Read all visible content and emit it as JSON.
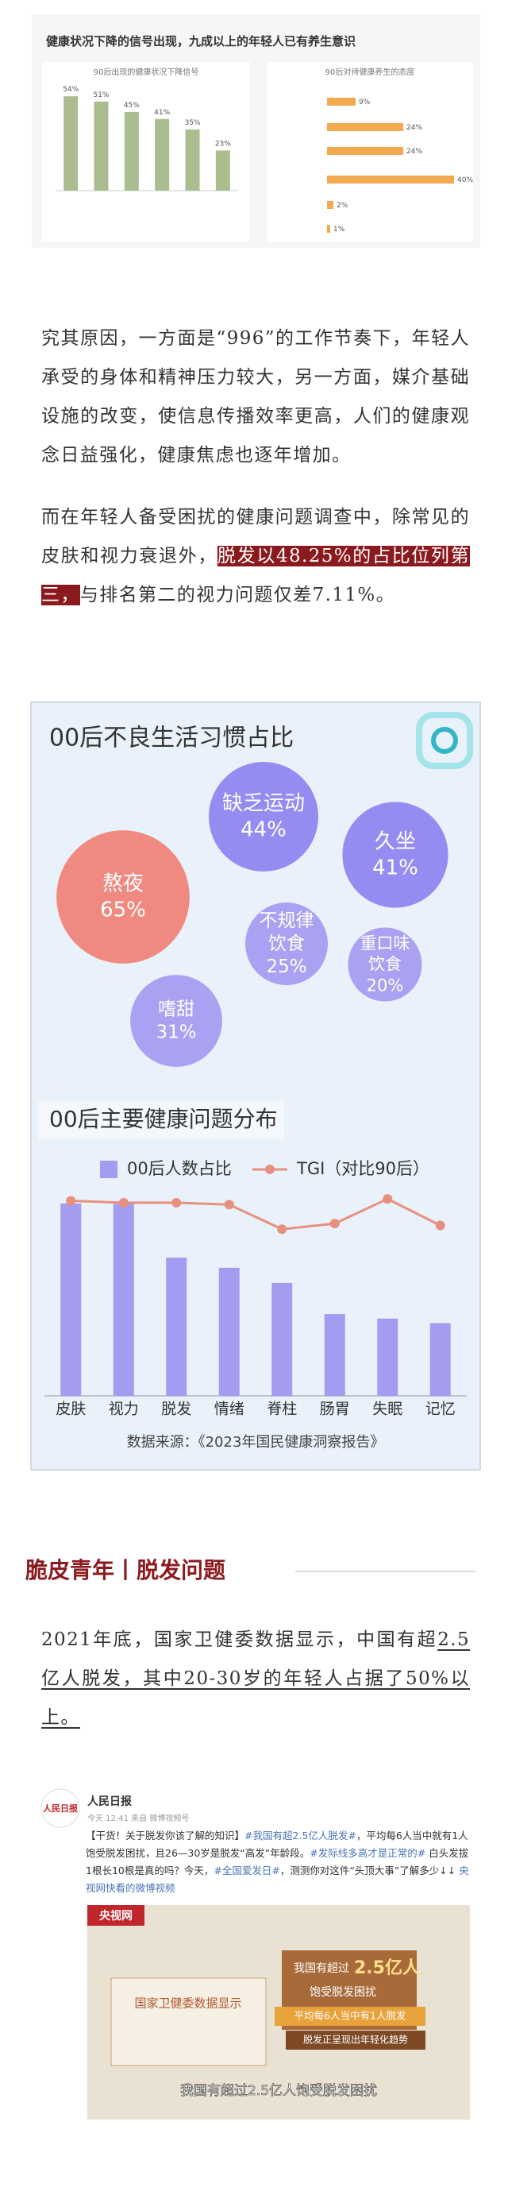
{
  "top_image_title": "健康状况下降的信号出现，九成以上的年轻人已有养生意识",
  "chart_data": [
    {
      "type": "bar",
      "title": "90后出现的健康状况下降信号",
      "categories": [
        null,
        null,
        null,
        null,
        null,
        null
      ],
      "values": [
        54,
        51,
        45,
        41,
        35,
        23
      ],
      "value_labels": [
        "54%",
        "51%",
        "45%",
        "41%",
        "35%",
        "23%"
      ],
      "color": "#a9bd8e",
      "ylim": [
        0,
        60
      ]
    },
    {
      "type": "hbar",
      "title": "90后对待健康养生的态度",
      "categories": [
        null,
        null,
        null,
        null,
        null,
        null
      ],
      "values": [
        9,
        24,
        24,
        40,
        2,
        1
      ],
      "value_labels": [
        "9%",
        "24%",
        "24%",
        "40%",
        "2%",
        "1%"
      ],
      "color": "#f2a950",
      "xlim": [
        0,
        45
      ]
    },
    {
      "type": "bubble",
      "title": "00后不良生活习惯占比",
      "categories": [
        "熬夜",
        "缺乏运动",
        "久坐",
        "不规律饮食",
        "重口味饮食",
        "嗜甜"
      ],
      "values": [
        65,
        44,
        41,
        25,
        20,
        31
      ],
      "value_labels": [
        "65%",
        "44%",
        "41%",
        "25%",
        "20%",
        "31%"
      ],
      "colors": [
        "#f08a80",
        "#948cf0",
        "#948cf0",
        "#a9a2f2",
        "#a9a2f2",
        "#a9a2f2"
      ]
    },
    {
      "type": "bar",
      "title": "00后主要健康问题分布",
      "categories": [
        "皮肤",
        "视力",
        "脱发",
        "情绪",
        "脊柱",
        "肠胃",
        "失眠",
        "记忆"
      ],
      "series": [
        {
          "name": "00后人数占比",
          "color": "#a49cf0",
          "values": [
            55.4,
            55.36,
            48.25,
            46.9,
            44.9,
            40.8,
            40.2,
            39.6
          ]
        },
        {
          "name": "TGI（对比90后）",
          "color": "#e8907f",
          "type": "line",
          "axis": "y2",
          "values": [
            103,
            102,
            102,
            101,
            88,
            91,
            104,
            90
          ]
        }
      ],
      "ylim": [
        30,
        60
      ],
      "y2lim": [
        0,
        120
      ]
    }
  ],
  "infographic_source": "数据来源：《2023年国民健康洞察报告》",
  "paragraphs": [
    {
      "segments": [
        {
          "text": "究其原因，一方面是“996”的工作节奏下，年轻人承受的身体和精神压力较大，另一方面，媒介基础设施的改变，使信息传播效率更高，人们的健康观念日益强化，健康焦虑也逐年增加。"
        }
      ]
    },
    {
      "segments": [
        {
          "text": "而在年轻人备受困扰的健康问题调查中，除常见的皮肤和视力衰退外，"
        },
        {
          "text": "脱发以48.25%的占比位列第三，",
          "highlight": true
        },
        {
          "text": "与排名第二的视力问题仅差7.11%。"
        }
      ]
    },
    {
      "segments": [
        {
          "text": "2021年底，国家卫健委数据显示，中国有超"
        },
        {
          "text": "2.5亿人脱发，其中20-30岁的年轻人占据了50%以上。",
          "underline": true
        }
      ]
    }
  ],
  "section_heading": "脆皮青年丨脱发问题",
  "weibo": {
    "logo": "人民日报",
    "name": "人民日报",
    "meta": "今天 12:41 来自 微博视频号",
    "segments": [
      {
        "text": "【干货！关于脱发你该了解的知识】"
      },
      {
        "text": "#我国有超2.5亿人脱发#",
        "link": true
      },
      {
        "text": "，平均每6人当中就有1人饱受脱发困扰，且26—30岁是脱发“高发”年龄段。"
      },
      {
        "text": "#发际线多高才是正常的#",
        "link": true
      },
      {
        "text": " 白头发拔1根长10根是真的吗？今天，"
      },
      {
        "text": "#全国爱发日#",
        "link": true
      },
      {
        "text": "，测测你对这件“头顶大事”了解多少↓↓ "
      },
      {
        "text": "央视网快看的微博视频",
        "link": true
      }
    ],
    "video": {
      "brand": "央视网",
      "board": "国家卫健委数据显示",
      "line1": "我国有超过",
      "big": "2.5亿人",
      "line2": "饱受脱发困扰",
      "line3": "平均每6人当中有1人脱发",
      "line4": "脱发正呈现出年轻化趋势",
      "caption": "我国有超过2.5亿人饱受脱发困扰"
    }
  }
}
